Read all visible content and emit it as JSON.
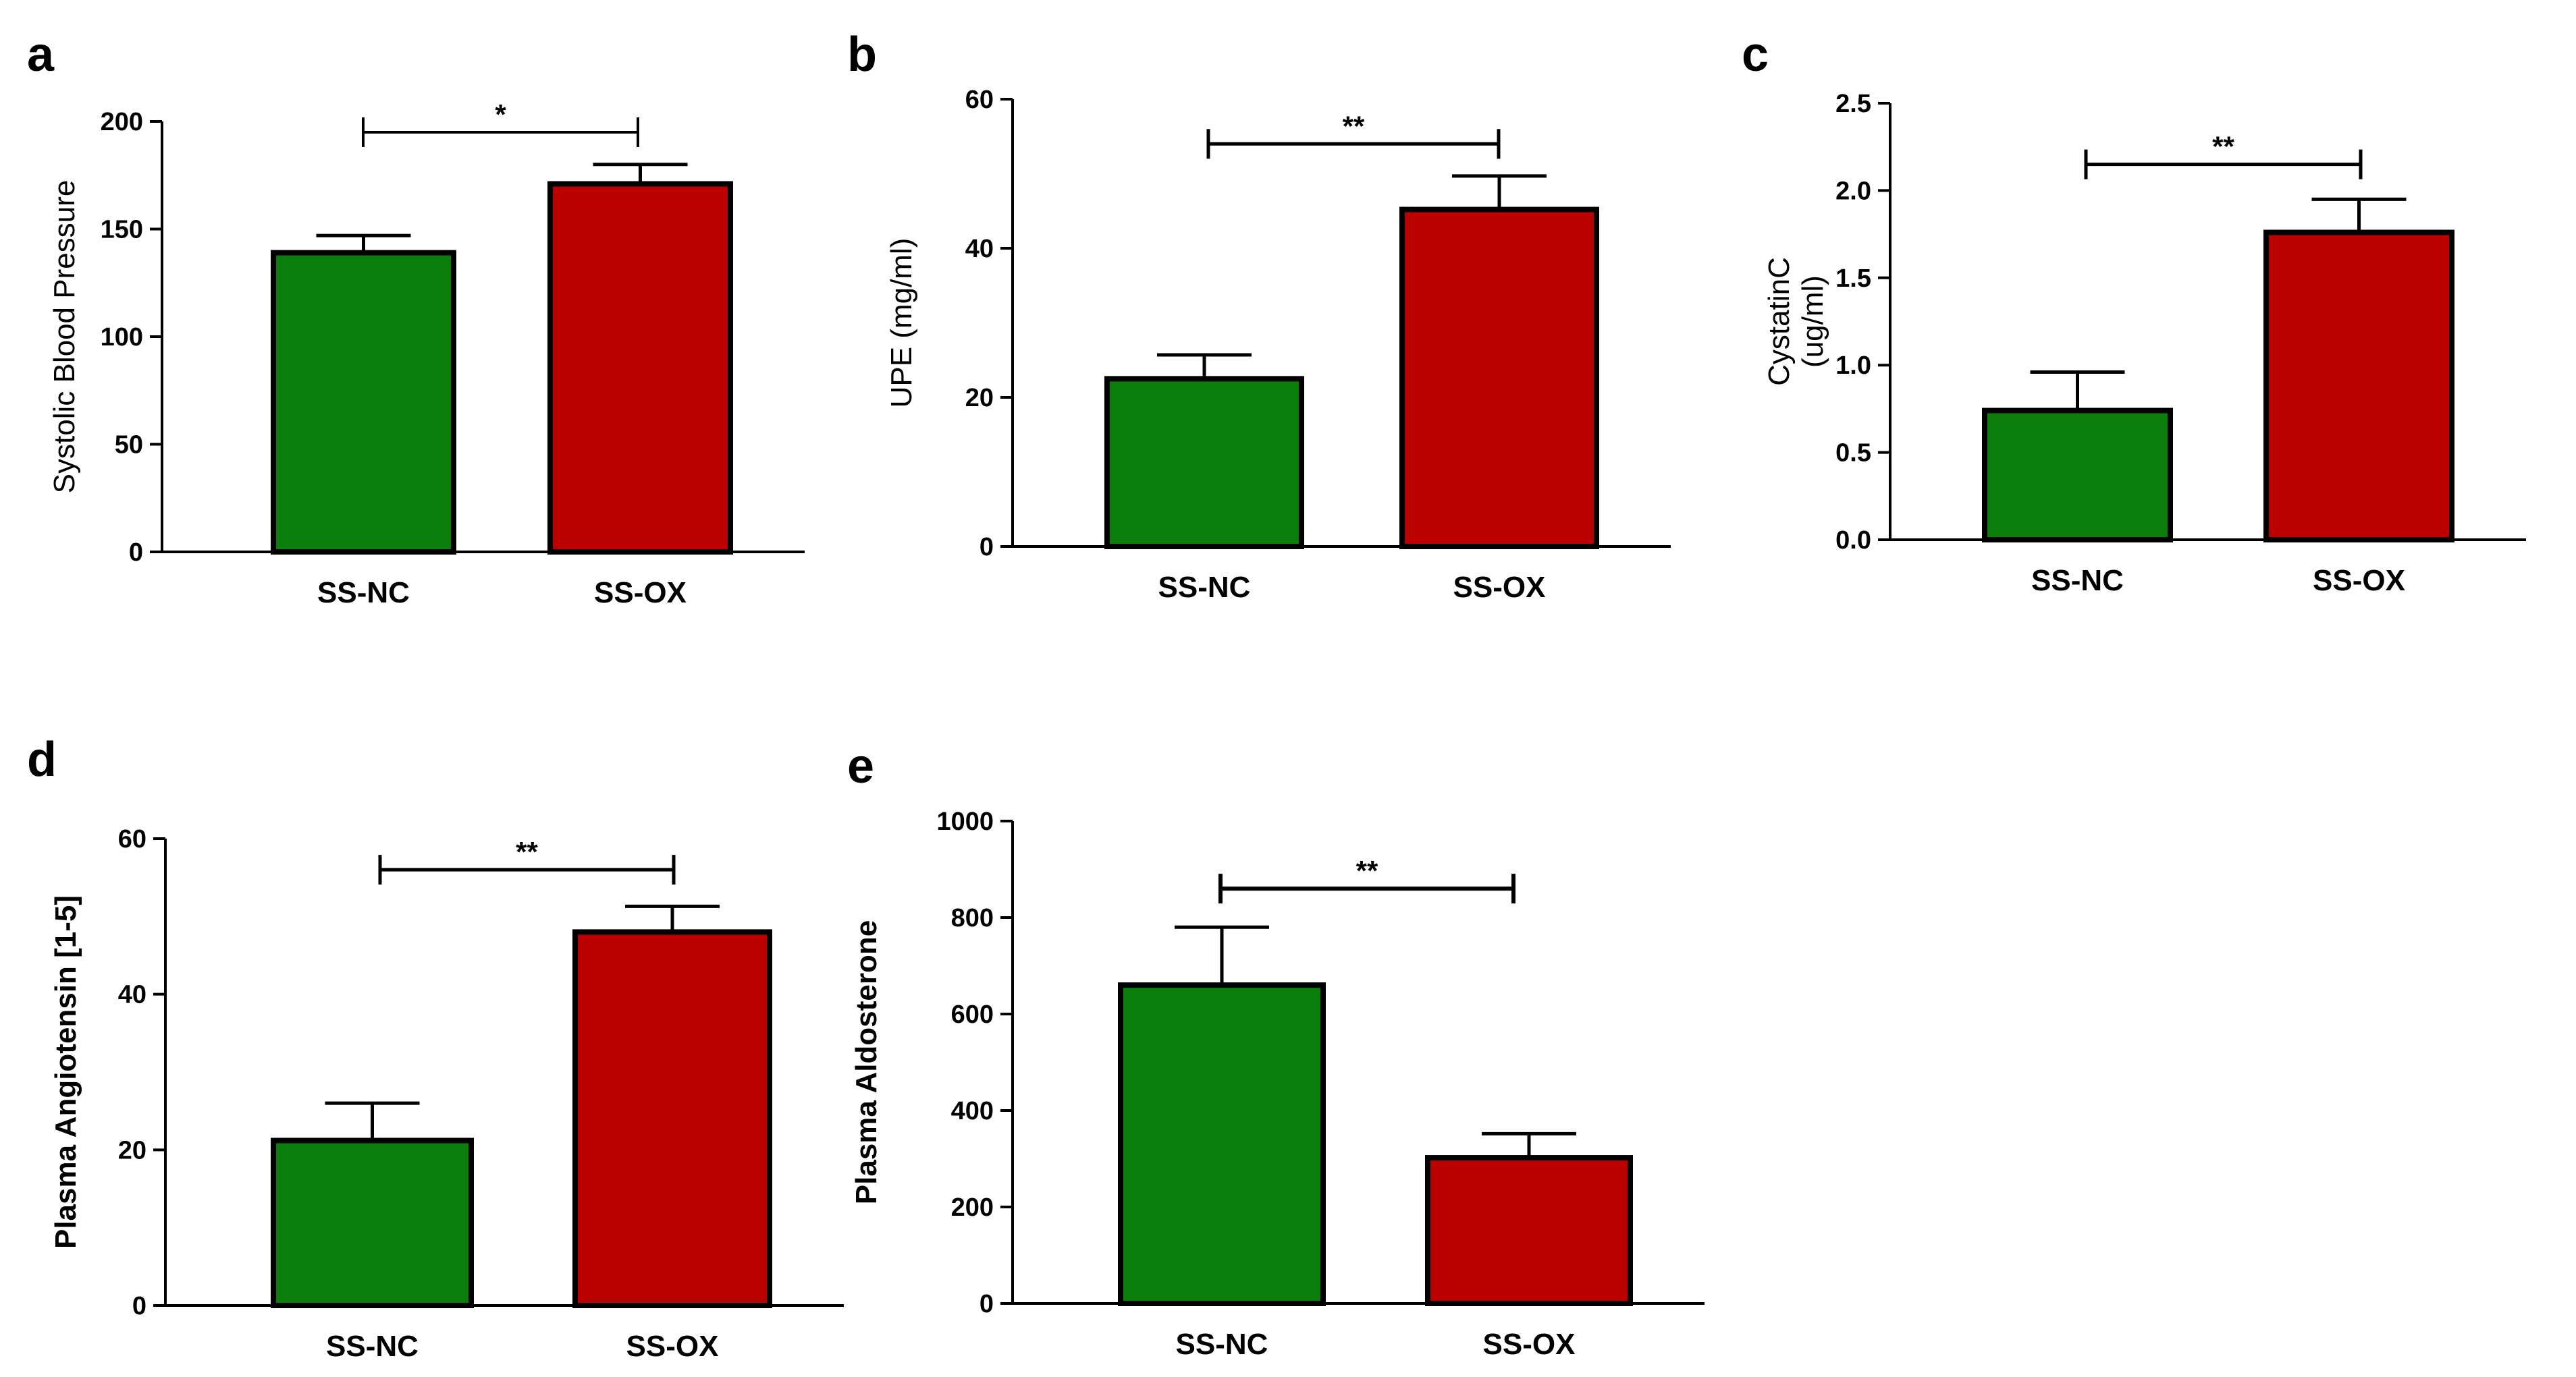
{
  "colors": {
    "nc": "#0b7d0b",
    "ox": "#bb0000",
    "axis": "#000000"
  },
  "chart_data": [
    {
      "panel": "a",
      "type": "bar",
      "categories": [
        "SS-NC",
        "SS-OX"
      ],
      "values": [
        139,
        171
      ],
      "errors": [
        8,
        9
      ],
      "ylabel": "Systolic Blood Pressure",
      "ylabel_bold": false,
      "ylim": [
        0,
        200
      ],
      "yticks": [
        0,
        50,
        100,
        150,
        200
      ],
      "ytick_labels": [
        "0",
        "50",
        "100",
        "150",
        "200"
      ],
      "significance": "*",
      "sig_y": 195
    },
    {
      "panel": "b",
      "type": "bar",
      "categories": [
        "SS-NC",
        "SS-OX"
      ],
      "values": [
        22.5,
        45.2
      ],
      "errors": [
        3.2,
        4.5
      ],
      "ylabel": "UPE (mg/ml)",
      "ylabel_bold": false,
      "ylim": [
        0,
        60
      ],
      "yticks": [
        0,
        20,
        40,
        60
      ],
      "ytick_labels": [
        "0",
        "20",
        "40",
        "60"
      ],
      "significance": "**",
      "sig_y": 54
    },
    {
      "panel": "c",
      "type": "bar",
      "categories": [
        "SS-NC",
        "SS-OX"
      ],
      "values": [
        0.74,
        1.76
      ],
      "errors": [
        0.22,
        0.19
      ],
      "ylabel": [
        "CystatinC",
        "(ug/ml)"
      ],
      "ylabel_bold": false,
      "ylim": [
        0,
        2.5
      ],
      "yticks": [
        0,
        0.5,
        1.0,
        1.5,
        2.0,
        2.5
      ],
      "ytick_labels": [
        "0.0",
        "0.5",
        "1.0",
        "1.5",
        "2.0",
        "2.5"
      ],
      "significance": "**",
      "sig_y": 2.15
    },
    {
      "panel": "d",
      "type": "bar",
      "categories": [
        "SS-NC",
        "SS-OX"
      ],
      "values": [
        21.2,
        48.0
      ],
      "errors": [
        4.8,
        3.3
      ],
      "ylabel": "Plasma Angiotensin [1-5]",
      "ylabel_bold": true,
      "ylim": [
        0,
        60
      ],
      "yticks": [
        0,
        20,
        40,
        60
      ],
      "ytick_labels": [
        "0",
        "20",
        "40",
        "60"
      ],
      "significance": "**",
      "sig_y": 56
    },
    {
      "panel": "e",
      "type": "bar",
      "categories": [
        "SS-NC",
        "SS-OX"
      ],
      "values": [
        660,
        302
      ],
      "errors": [
        120,
        50
      ],
      "ylabel": "Plasma Aldosterone",
      "ylabel_bold": true,
      "ylim": [
        0,
        1000
      ],
      "yticks": [
        0,
        200,
        400,
        600,
        800,
        1000
      ],
      "ytick_labels": [
        "0",
        "200",
        "400",
        "600",
        "800",
        "1000"
      ],
      "significance": "**",
      "sig_y": 860
    }
  ]
}
